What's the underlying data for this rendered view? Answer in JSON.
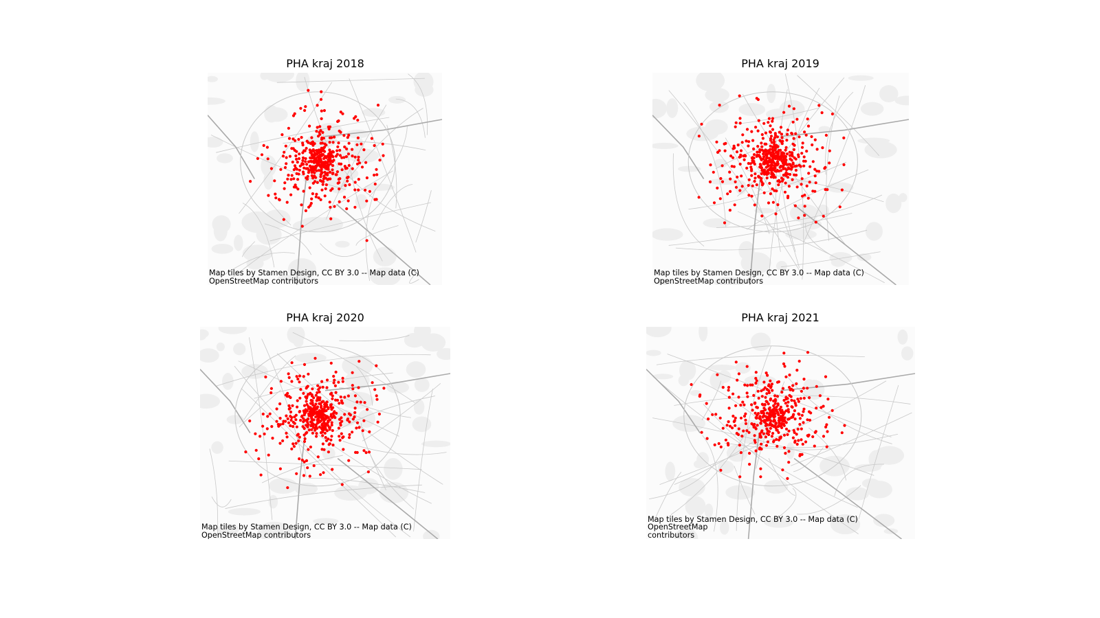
{
  "panels": [
    {
      "title": "PHA kraj 2018",
      "attribution_line1": "Map tiles by Stamen Design, CC BY 3.0 -- Map data (C)",
      "attribution_line2": "OpenStreetMap contributors",
      "seed": 18,
      "points": 430
    },
    {
      "title": "PHA kraj 2019",
      "attribution_line1": "Map tiles by Stamen Design, CC BY 3.0 -- Map data (C)",
      "attribution_line2": "OpenStreetMap contributors",
      "seed": 19,
      "points": 470
    },
    {
      "title": "PHA kraj 2020",
      "attribution_line1": "Map tiles by Stamen Design, CC BY 3.0 -- Map data (C)",
      "attribution_line2": "OpenStreetMap contributors",
      "seed": 20,
      "points": 440
    },
    {
      "title": "PHA kraj 2021",
      "attribution_line1": "Map tiles by Stamen Design, CC BY 3.0 -- Map data (C) OpenStreetMap",
      "attribution_line2": "contributors",
      "seed": 21,
      "points": 400
    }
  ],
  "colors": {
    "point": "#ff0000",
    "road": "#a9a9a9",
    "minor_road": "#c8c8c8",
    "area": "#eeeeee"
  }
}
